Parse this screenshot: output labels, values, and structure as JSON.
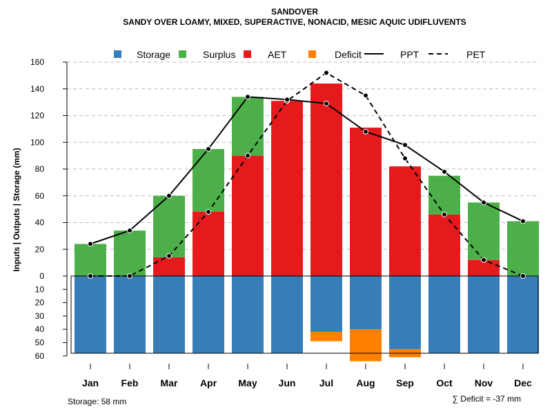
{
  "chart_data": {
    "type": "bar",
    "title": "SANDOVER",
    "subtitle": "SANDY OVER LOAMY, MIXED, SUPERACTIVE, NONACID, MESIC AQUIC UDIFLUVENTS",
    "ylabel": "Inputs | Outputs | Storage    (mm)",
    "categories": [
      "Jan",
      "Feb",
      "Mar",
      "Apr",
      "May",
      "Jun",
      "Jul",
      "Aug",
      "Sep",
      "Oct",
      "Nov",
      "Dec"
    ],
    "upper_axis": {
      "ylim": [
        0,
        160
      ],
      "ticks": [
        "0",
        "20",
        "40",
        "60",
        "80",
        "100",
        "120",
        "140",
        "160"
      ]
    },
    "lower_axis": {
      "ylim": [
        0,
        60
      ],
      "ticks": [
        "0",
        "10",
        "20",
        "30",
        "40",
        "50",
        "60"
      ]
    },
    "storage_capacity": 58,
    "series": [
      {
        "name": "AET",
        "kind": "bar",
        "color": "#E41A1C",
        "values": [
          0,
          0,
          14,
          48,
          90,
          131,
          144,
          111,
          82,
          46,
          12,
          0
        ]
      },
      {
        "name": "Surplus",
        "kind": "bar",
        "color": "#4DAF4A",
        "values": [
          24,
          34,
          46,
          47,
          44,
          0,
          0,
          0,
          0,
          29,
          43,
          41
        ]
      },
      {
        "name": "Storage",
        "kind": "bar",
        "color": "#377EB8",
        "values": [
          58,
          58,
          58,
          58,
          58,
          58,
          42,
          40,
          55,
          58,
          58,
          58
        ]
      },
      {
        "name": "Deficit",
        "kind": "bar",
        "color": "#FF7F00",
        "values": [
          0,
          0,
          0,
          0,
          0,
          0,
          7,
          24,
          6,
          0,
          0,
          0
        ]
      },
      {
        "name": "PPT",
        "kind": "line",
        "style": "solid",
        "color": "#000000",
        "values": [
          24,
          34,
          60,
          95,
          134,
          132,
          129,
          108,
          98,
          78,
          55,
          41
        ]
      },
      {
        "name": "PET",
        "kind": "line",
        "style": "dashed",
        "color": "#000000",
        "values": [
          0,
          0,
          15,
          48,
          90,
          131,
          152,
          135,
          88,
          46,
          12,
          0
        ]
      }
    ],
    "legend": {
      "placement": "top",
      "entries": [
        {
          "label": "Storage",
          "color": "#377EB8",
          "symbol": "square"
        },
        {
          "label": "Surplus",
          "color": "#4DAF4A",
          "symbol": "square"
        },
        {
          "label": "AET",
          "color": "#E41A1C",
          "symbol": "square"
        },
        {
          "label": "Deficit",
          "color": "#FF7F00",
          "symbol": "square"
        },
        {
          "label": "PPT",
          "color": "#000000",
          "symbol": "solid-line"
        },
        {
          "label": "PET",
          "color": "#000000",
          "symbol": "dashed-line"
        }
      ]
    },
    "footer_left": "Storage: 58 mm",
    "footer_right": "∑ Deficit = -37 mm"
  }
}
